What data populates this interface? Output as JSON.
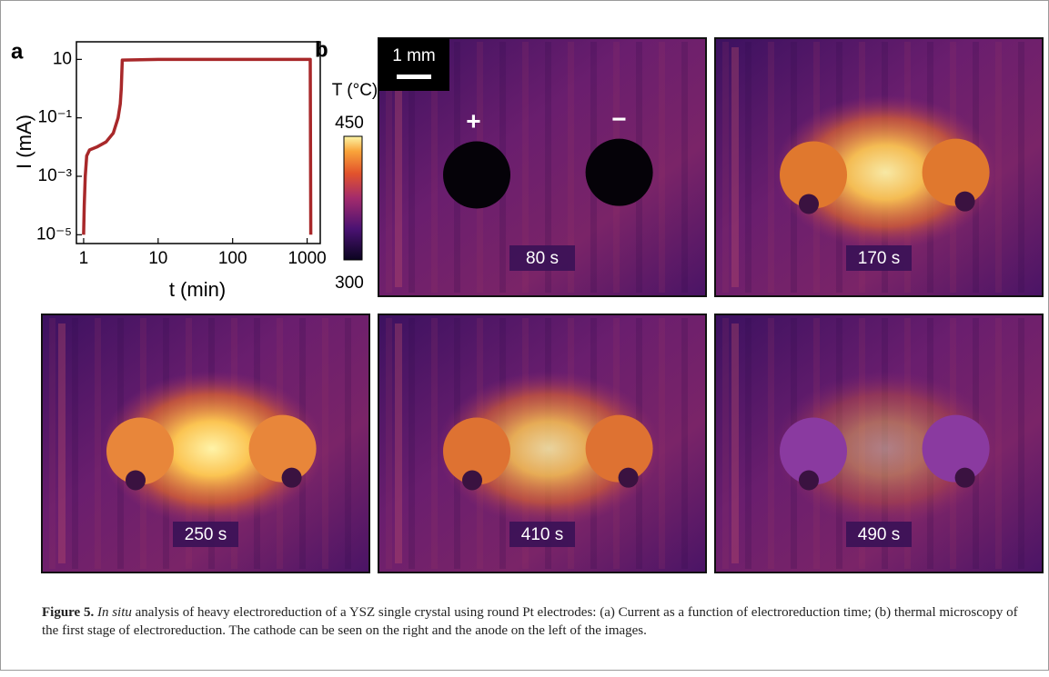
{
  "chart_data": {
    "type": "line",
    "panel_label": "a",
    "x_label": "t (min)",
    "y_label": "I (mA)",
    "log_x": true,
    "log_y": true,
    "x": [
      1.0,
      1.02,
      1.05,
      1.1,
      1.2,
      1.5,
      2.0,
      2.5,
      2.9,
      3.1,
      3.2,
      3.3,
      10,
      100,
      1000,
      1100,
      1110,
      1120
    ],
    "values": [
      1e-05,
      0.0001,
      0.001,
      0.005,
      0.008,
      0.01,
      0.015,
      0.03,
      0.1,
      0.3,
      1,
      9.5,
      10,
      10,
      10,
      10,
      0.01,
      1e-05
    ],
    "color": "#a8282a",
    "xlim": [
      0.8,
      1500
    ],
    "ylim": [
      5e-06,
      40
    ],
    "xticks": [
      1,
      10,
      100,
      1000
    ],
    "yticks": [
      {
        "value": 1e-05,
        "label": "10⁻⁵"
      },
      {
        "value": 0.001,
        "label": "10⁻³"
      },
      {
        "value": 0.1,
        "label": "10⁻¹"
      },
      10
    ]
  },
  "panel_b": {
    "label": "b",
    "scale_bar": "1 mm",
    "anode_sign": "+",
    "cathode_sign": "−",
    "colorbar": {
      "label": "T (°C)",
      "lim": [
        300,
        450
      ],
      "ticks": [
        300,
        450
      ]
    },
    "images": [
      {
        "label": "80 s"
      },
      {
        "label": "170 s"
      },
      {
        "label": "250 s"
      },
      {
        "label": "410 s"
      },
      {
        "label": "490 s"
      }
    ]
  },
  "caption": {
    "label": "Figure 5.",
    "emphasis": "In situ",
    "text": " analysis of heavy electroreduction of a YSZ single crystal using round Pt electrodes: (a) Current as a function of electroreduction time; (b) thermal microscopy of the first stage of electroreduction. The cathode can be seen on the right and the anode on the left of the images."
  }
}
